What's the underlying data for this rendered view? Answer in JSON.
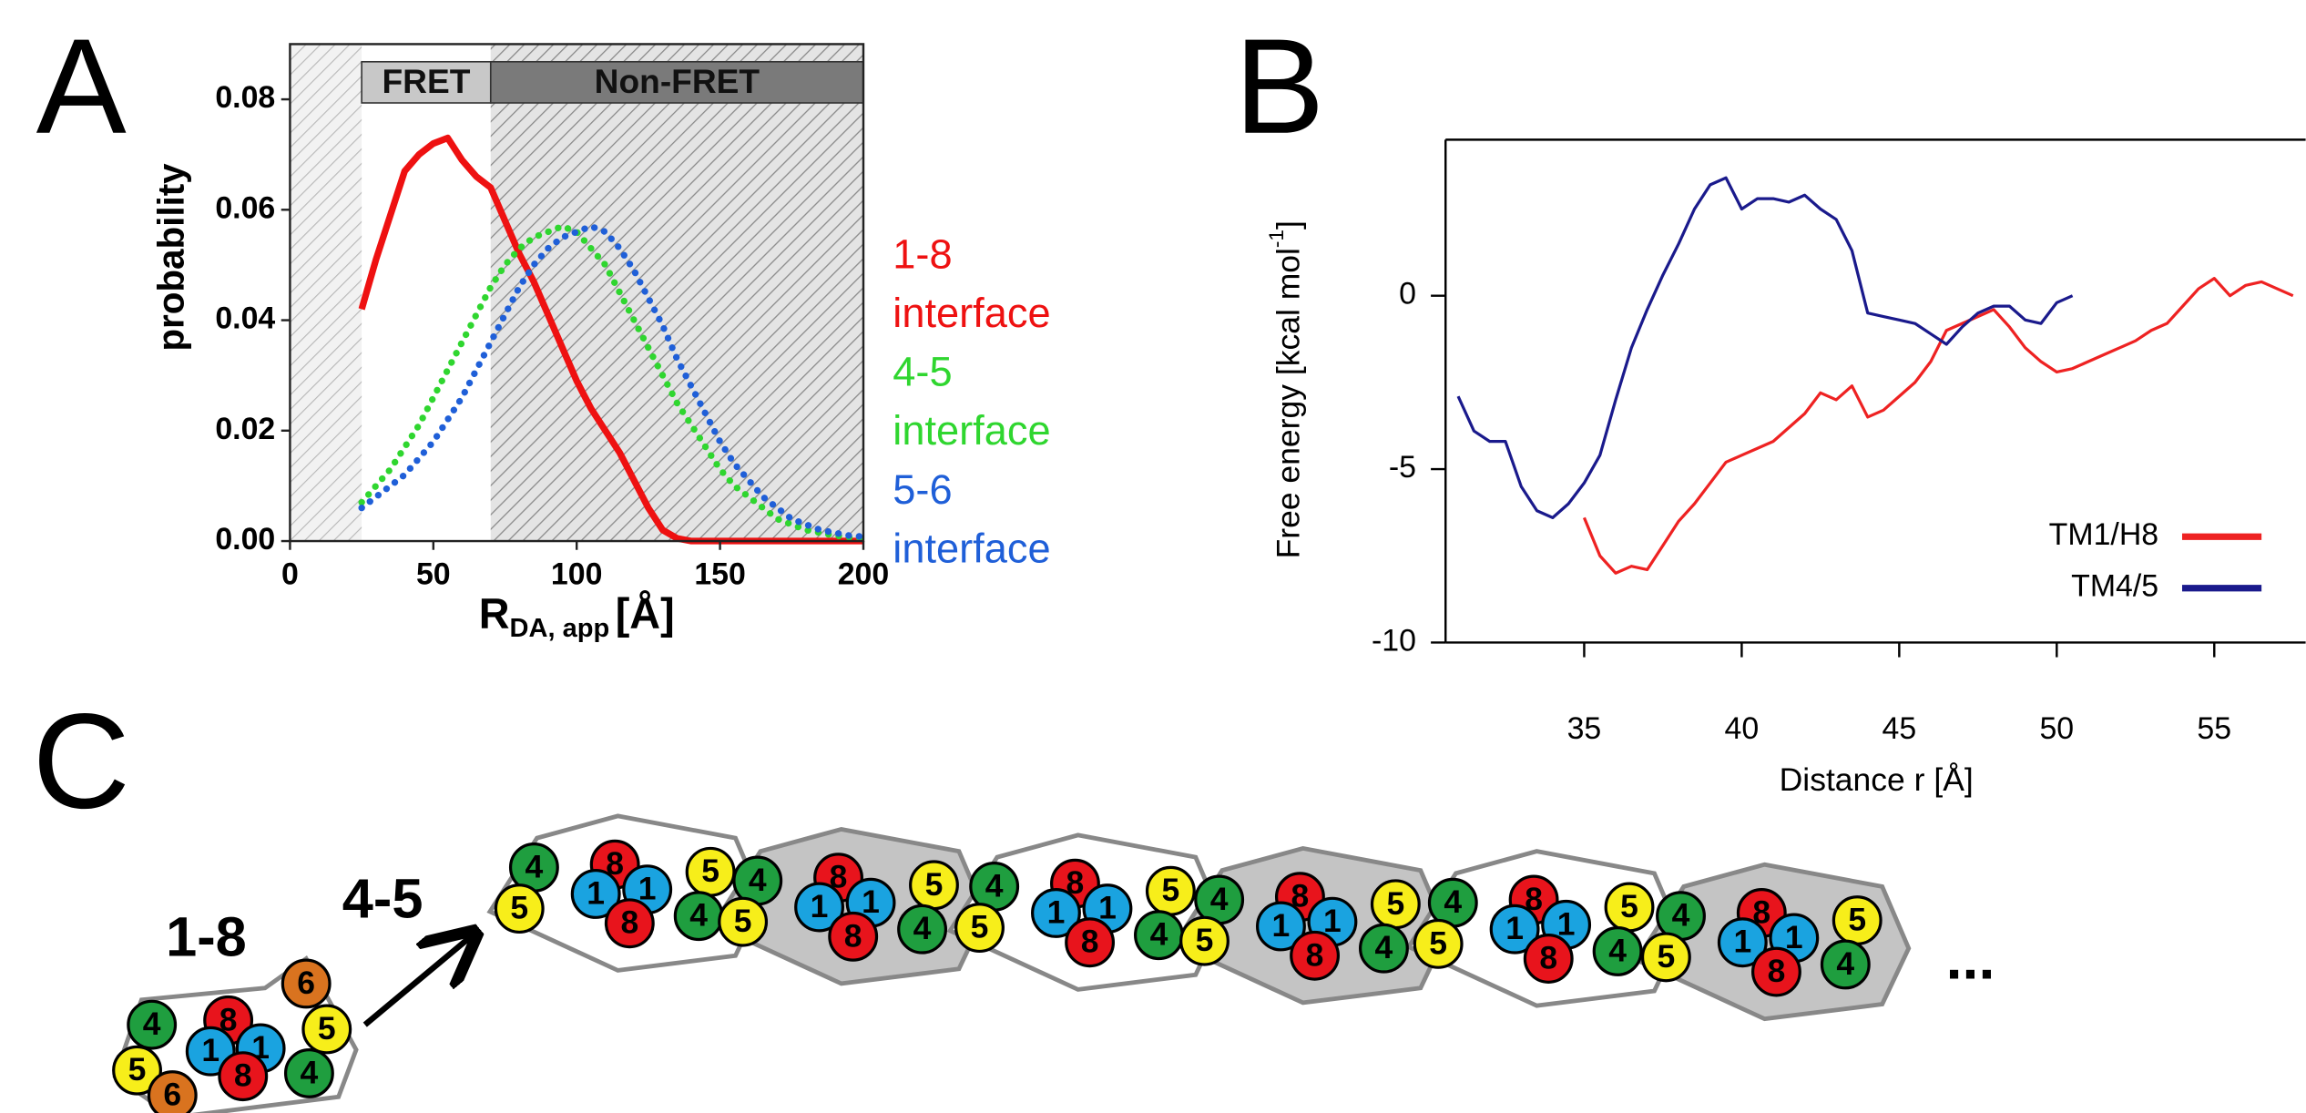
{
  "panel_labels": [
    "A",
    "B",
    "C"
  ],
  "chart_data": [
    {
      "type": "line",
      "y_label": "probability",
      "x_label": "R",
      "x_label_sub": "DA, app",
      "x_label_unit": "[Å]",
      "xlim": [
        0,
        200
      ],
      "ylim": [
        0,
        0.09
      ],
      "xticks": [
        0,
        50,
        100,
        150,
        200
      ],
      "yticks": [
        {
          "value": 0,
          "label": "0.00"
        },
        0.02,
        0.04,
        0.06,
        0.08
      ],
      "regions": [
        {
          "label": "FRET",
          "range": [
            25,
            70
          ],
          "color": "#c8c8c8"
        },
        {
          "label": "Non-FRET",
          "range": [
            70,
            200
          ],
          "color": "#7a7a7a"
        }
      ],
      "hatched": [
        [
          0,
          25
        ],
        [
          70,
          200
        ]
      ],
      "x": [
        25,
        30,
        35,
        40,
        45,
        50,
        55,
        60,
        65,
        70,
        75,
        80,
        85,
        90,
        95,
        100,
        105,
        110,
        115,
        120,
        125,
        130,
        135,
        140,
        145,
        150,
        155,
        160,
        165,
        170,
        175,
        180,
        185,
        190,
        195,
        200
      ],
      "series": [
        {
          "name": "1-8 interface",
          "color": "#ee1111",
          "style": "solid",
          "values": [
            0.042,
            0.051,
            0.059,
            0.067,
            0.07,
            0.072,
            0.073,
            0.069,
            0.066,
            0.064,
            0.058,
            0.052,
            0.047,
            0.041,
            0.035,
            0.029,
            0.024,
            0.02,
            0.016,
            0.011,
            0.006,
            0.002,
            0.0005,
            0,
            0,
            0,
            0,
            0,
            0,
            0,
            0,
            0,
            0,
            0,
            0,
            0
          ]
        },
        {
          "name": "4-5 interface",
          "color": "#2fd62f",
          "style": "dotted",
          "values": [
            0.007,
            0.01,
            0.013,
            0.017,
            0.021,
            0.026,
            0.031,
            0.036,
            0.041,
            0.046,
            0.05,
            0.053,
            0.055,
            0.056,
            0.057,
            0.056,
            0.053,
            0.05,
            0.045,
            0.04,
            0.035,
            0.03,
            0.025,
            0.021,
            0.017,
            0.013,
            0.01,
            0.008,
            0.006,
            0.004,
            0.003,
            0.002,
            0.0015,
            0.001,
            0.0007,
            0.0005
          ]
        },
        {
          "name": "5-6 interface",
          "color": "#1f5fd8",
          "style": "dotted",
          "values": [
            0.006,
            0.008,
            0.01,
            0.012,
            0.015,
            0.018,
            0.022,
            0.026,
            0.031,
            0.036,
            0.041,
            0.046,
            0.05,
            0.053,
            0.055,
            0.056,
            0.057,
            0.056,
            0.053,
            0.049,
            0.044,
            0.039,
            0.033,
            0.028,
            0.023,
            0.018,
            0.014,
            0.011,
            0.008,
            0.006,
            0.004,
            0.003,
            0.002,
            0.0015,
            0.001,
            0.0008
          ]
        }
      ]
    },
    {
      "type": "line",
      "y_label": "Free energy [kcal mol",
      "y_label_sup": "-1",
      "y_label_end": "]",
      "x_label": "Distance r [Å]",
      "xlim": [
        30.6,
        57.9
      ],
      "ylim": [
        -10,
        4.5
      ],
      "xticks": [
        35,
        40,
        45,
        50,
        55
      ],
      "yticks": [
        -10,
        -5,
        0
      ],
      "legend": "lower right",
      "series": [
        {
          "name": "TM1/H8",
          "color": "#ee2222",
          "x": [
            35,
            35.5,
            36,
            36.5,
            37,
            37.5,
            38,
            38.5,
            39,
            39.5,
            40,
            40.5,
            41,
            41.5,
            42,
            42.5,
            43,
            43.5,
            44,
            44.5,
            45,
            45.5,
            46,
            46.5,
            47,
            47.5,
            48,
            48.5,
            49,
            49.5,
            50,
            50.5,
            51,
            51.5,
            52,
            52.5,
            53,
            53.5,
            54,
            54.5,
            55,
            55.5,
            56,
            56.5,
            57,
            57.5
          ],
          "values": [
            -6.4,
            -7.5,
            -8.0,
            -7.8,
            -7.9,
            -7.2,
            -6.5,
            -6.0,
            -5.4,
            -4.8,
            -4.6,
            -4.4,
            -4.2,
            -3.8,
            -3.4,
            -2.8,
            -3.0,
            -2.6,
            -3.5,
            -3.3,
            -2.9,
            -2.5,
            -1.9,
            -1.0,
            -0.8,
            -0.6,
            -0.4,
            -0.9,
            -1.5,
            -1.9,
            -2.2,
            -2.1,
            -1.9,
            -1.7,
            -1.5,
            -1.3,
            -1.0,
            -0.8,
            -0.3,
            0.2,
            0.5,
            0.0,
            0.3,
            0.4,
            0.2,
            0.0
          ]
        },
        {
          "name": "TM4/5",
          "color": "#1a1a8c",
          "x": [
            31,
            31.5,
            32,
            32.5,
            33,
            33.5,
            34,
            34.5,
            35,
            35.5,
            36,
            36.5,
            37,
            37.5,
            38,
            38.5,
            39,
            39.5,
            40,
            40.5,
            41,
            41.5,
            42,
            42.5,
            43,
            43.5,
            44,
            44.5,
            45,
            45.5,
            46,
            46.5,
            47,
            47.5,
            48,
            48.5,
            49,
            49.5,
            50,
            50.5
          ],
          "values": [
            -2.9,
            -3.9,
            -4.2,
            -4.2,
            -5.5,
            -6.2,
            -6.4,
            -6.0,
            -5.4,
            -4.6,
            -3.0,
            -1.5,
            -0.4,
            0.6,
            1.5,
            2.5,
            3.2,
            3.4,
            2.5,
            2.8,
            2.8,
            2.7,
            2.9,
            2.5,
            2.2,
            1.3,
            -0.5,
            -0.6,
            -0.7,
            -0.8,
            -1.1,
            -1.4,
            -0.9,
            -0.5,
            -0.3,
            -0.3,
            -0.7,
            -0.8,
            -0.2,
            0.0
          ]
        }
      ]
    }
  ],
  "diagram": {
    "left_label": "1-8",
    "right_label": "4-5",
    "ellipsis": "...",
    "dimer": [
      {
        "label": "4",
        "color": "#1f9e3f"
      },
      {
        "label": "8",
        "color": "#e8141c"
      },
      {
        "label": "6",
        "color": "#d9731f"
      },
      {
        "label": "5",
        "color": "#f7ee1a"
      },
      {
        "label": "1",
        "color": "#1aa3e0"
      },
      {
        "label": "1",
        "color": "#1aa3e0"
      },
      {
        "label": "5",
        "color": "#f7ee1a"
      },
      {
        "label": "6",
        "color": "#d9731f"
      },
      {
        "label": "8",
        "color": "#e8141c"
      },
      {
        "label": "4",
        "color": "#1f9e3f"
      }
    ],
    "chain_unit": [
      {
        "label": "4",
        "color": "#1f9e3f"
      },
      {
        "label": "5",
        "color": "#f7ee1a"
      },
      {
        "label": "8",
        "color": "#e8141c"
      },
      {
        "label": "1",
        "color": "#1aa3e0"
      },
      {
        "label": "1",
        "color": "#1aa3e0"
      },
      {
        "label": "8",
        "color": "#e8141c"
      },
      {
        "label": "5",
        "color": "#f7ee1a"
      },
      {
        "label": "4",
        "color": "#1f9e3f"
      }
    ]
  }
}
